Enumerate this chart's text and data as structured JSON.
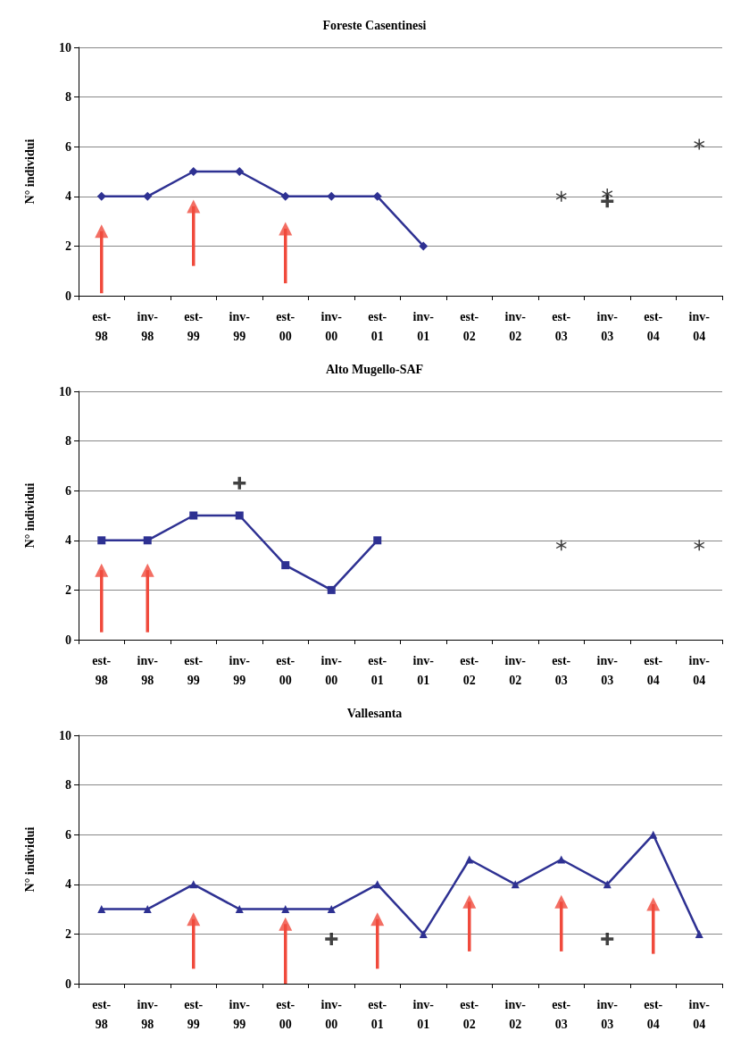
{
  "chart_data": [
    {
      "type": "line",
      "title": "Foreste Casentinesi",
      "ylabel": "N° individui",
      "ylim": [
        0,
        10
      ],
      "yticks": [
        0,
        2,
        4,
        6,
        8,
        10
      ],
      "categories": [
        "est-98",
        "inv-98",
        "est-99",
        "inv-99",
        "est-00",
        "inv-00",
        "est-01",
        "inv-01",
        "est-02",
        "inv-02",
        "est-03",
        "inv-03",
        "est-04",
        "inv-04"
      ],
      "grid": "y",
      "series": [
        {
          "color": "#2e3192",
          "marker": "diamond",
          "values": [
            4,
            4,
            5,
            5,
            4,
            4,
            4,
            2,
            null,
            null,
            null,
            null,
            null,
            null
          ]
        },
        {
          "type": "scatter",
          "color": "#111111",
          "marker": "star",
          "x": [
            "est-03",
            "inv-03",
            "inv-04"
          ],
          "values": [
            4,
            4.1,
            6.1
          ]
        },
        {
          "type": "scatter",
          "color": "#111111",
          "marker": "cross",
          "x": [
            "inv-03"
          ],
          "values": [
            3.8
          ]
        },
        {
          "type": "scatter",
          "color": "#f04a3c",
          "marker": "triangle",
          "x": [
            "est-98",
            "est-99",
            "est-00"
          ],
          "values": [
            2.6,
            3.6,
            2.7
          ],
          "errors": [
            [
              0.1,
              2.6
            ],
            [
              1.2,
              3.6
            ],
            [
              0.5,
              2.7
            ]
          ]
        }
      ]
    },
    {
      "type": "line",
      "title": "Alto Mugello-SAF",
      "ylabel": "N° individui",
      "ylim": [
        0,
        10
      ],
      "yticks": [
        0,
        2,
        4,
        6,
        8,
        10
      ],
      "categories": [
        "est-98",
        "inv-98",
        "est-99",
        "inv-99",
        "est-00",
        "inv-00",
        "est-01",
        "inv-01",
        "est-02",
        "inv-02",
        "est-03",
        "inv-03",
        "est-04",
        "inv-04"
      ],
      "grid": "y",
      "series": [
        {
          "color": "#2e3192",
          "marker": "square",
          "values": [
            4,
            4,
            5,
            5,
            3,
            2,
            4,
            null,
            null,
            null,
            null,
            null,
            null,
            null
          ]
        },
        {
          "type": "scatter",
          "color": "#111111",
          "marker": "star",
          "x": [
            "est-03",
            "inv-04"
          ],
          "values": [
            3.8,
            3.8
          ]
        },
        {
          "type": "scatter",
          "color": "#111111",
          "marker": "cross",
          "x": [
            "inv-99"
          ],
          "values": [
            6.3
          ]
        },
        {
          "type": "scatter",
          "color": "#f04a3c",
          "marker": "triangle",
          "x": [
            "est-98",
            "inv-98"
          ],
          "values": [
            2.8,
            2.8
          ],
          "errors": [
            [
              0.3,
              2.8
            ],
            [
              0.3,
              2.8
            ]
          ]
        }
      ]
    },
    {
      "type": "line",
      "title": "Vallesanta",
      "ylabel": "N° individui",
      "ylim": [
        0,
        10
      ],
      "yticks": [
        0,
        2,
        4,
        6,
        8,
        10
      ],
      "categories": [
        "est-98",
        "inv-98",
        "est-99",
        "inv-99",
        "est-00",
        "inv-00",
        "est-01",
        "inv-01",
        "est-02",
        "inv-02",
        "est-03",
        "inv-03",
        "est-04",
        "inv-04"
      ],
      "grid": "y",
      "series": [
        {
          "color": "#2e3192",
          "marker": "triangle",
          "values": [
            3,
            3,
            4,
            3,
            3,
            3,
            4,
            2,
            5,
            4,
            5,
            4,
            6,
            2
          ]
        },
        {
          "type": "scatter",
          "color": "#111111",
          "marker": "cross",
          "x": [
            "inv-00",
            "inv-03"
          ],
          "values": [
            1.8,
            1.8
          ]
        },
        {
          "type": "scatter",
          "color": "#f04a3c",
          "marker": "triangle",
          "x": [
            "est-99",
            "est-00",
            "est-01",
            "est-02",
            "est-03",
            "est-04"
          ],
          "values": [
            2.6,
            2.4,
            2.6,
            3.3,
            3.3,
            3.2
          ],
          "errors": [
            [
              0.6,
              2.6
            ],
            [
              0,
              2.4
            ],
            [
              0.6,
              2.6
            ],
            [
              1.3,
              3.3
            ],
            [
              1.3,
              3.3
            ],
            [
              1.2,
              3.2
            ]
          ]
        }
      ]
    }
  ]
}
